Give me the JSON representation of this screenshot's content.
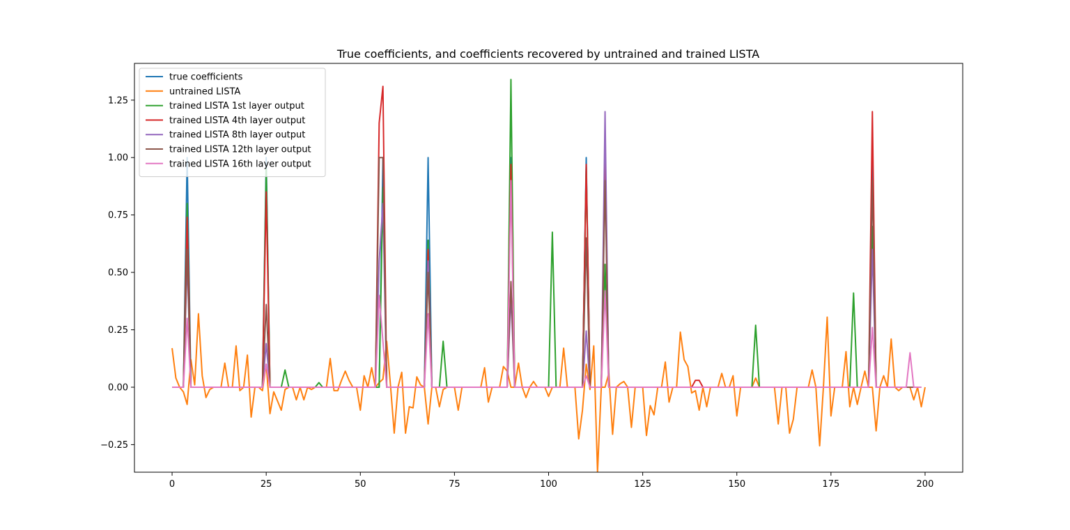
{
  "chart_data": {
    "type": "line",
    "title": "True coefficients, and coefficients recovered by untrained and trained LISTA",
    "xlabel": "",
    "ylabel": "",
    "xlim": [
      -10,
      210
    ],
    "ylim": [
      -0.37,
      1.41
    ],
    "xticks": [
      0,
      25,
      50,
      75,
      100,
      125,
      150,
      175,
      200
    ],
    "yticks": [
      -0.25,
      0.0,
      0.25,
      0.5,
      0.75,
      1.0,
      1.25
    ],
    "ytick_labels": [
      "−0.25",
      "0.00",
      "0.25",
      "0.50",
      "0.75",
      "1.00",
      "1.25"
    ],
    "legend_position": "top-left",
    "grid": false,
    "n_points": 200,
    "series": [
      {
        "name": "true coefficients",
        "color": "#1f77b4",
        "base": 0,
        "points": [
          [
            4,
            1.0
          ],
          [
            25,
            1.0
          ],
          [
            56,
            1.0
          ],
          [
            68,
            1.0
          ],
          [
            90,
            1.0
          ],
          [
            110,
            1.0
          ],
          [
            115,
            1.0
          ],
          [
            186,
            1.0
          ]
        ]
      },
      {
        "name": "untrained LISTA",
        "color": "#ff7f0e",
        "values": [
          0.17,
          0.04,
          0.0,
          -0.02,
          -0.075,
          0.12,
          0.01,
          0.32,
          0.05,
          -0.045,
          -0.01,
          0.0,
          0.0,
          0.0,
          0.105,
          0.0,
          0.0,
          0.18,
          -0.015,
          0.0,
          0.14,
          -0.13,
          0.0,
          0.0,
          -0.015,
          0.1,
          -0.115,
          -0.02,
          -0.06,
          -0.1,
          -0.01,
          0.0,
          0.0,
          -0.055,
          0.0,
          -0.055,
          0.0,
          -0.01,
          0.0,
          0.0,
          0.0,
          0.0,
          0.125,
          -0.015,
          -0.015,
          0.03,
          0.07,
          0.03,
          0.0,
          0.0,
          -0.1,
          0.05,
          0.0,
          0.085,
          0.0,
          0.02,
          0.035,
          0.2,
          0.01,
          -0.2,
          0.0,
          0.065,
          -0.2,
          -0.085,
          -0.09,
          0.045,
          0.01,
          0.0,
          -0.16,
          0.0,
          0.0,
          -0.085,
          -0.01,
          0.0,
          0.0,
          0.0,
          -0.1,
          0.0,
          0.0,
          0.0,
          0.0,
          0.0,
          0.0,
          0.085,
          -0.065,
          0.0,
          0.0,
          0.0,
          0.09,
          0.07,
          0.0,
          0.0,
          0.105,
          0.0,
          -0.045,
          0.0,
          0.025,
          0.0,
          0.0,
          0.0,
          -0.04,
          0.0,
          0.0,
          0.0,
          0.17,
          0.0,
          0.0,
          0.0,
          -0.225,
          -0.1,
          0.1,
          -0.01,
          0.18,
          -0.37,
          0.0,
          0.0,
          0.06,
          -0.205,
          0.0,
          0.015,
          0.025,
          0.0,
          -0.175,
          0.0,
          0.0,
          0.0,
          -0.21,
          -0.08,
          -0.12,
          0.0,
          0.0,
          0.11,
          -0.065,
          0.0,
          0.0,
          0.24,
          0.12,
          0.09,
          -0.025,
          -0.015,
          -0.1,
          0.0,
          -0.085,
          0.0,
          0.0,
          0.0,
          0.06,
          0.0,
          0.0,
          0.05,
          -0.125,
          0.0,
          0.0,
          0.0,
          0.0,
          0.04,
          0.0,
          0.0,
          0.0,
          0.0,
          0.0,
          -0.16,
          0.0,
          0.0,
          -0.2,
          -0.14,
          0.0,
          0.0,
          0.0,
          0.0,
          0.075,
          0.0,
          -0.255,
          0.0,
          0.305,
          -0.125,
          0.0,
          0.0,
          0.0,
          0.155,
          -0.085,
          0.0,
          -0.075,
          0.0,
          0.07,
          0.0,
          0.0,
          -0.19,
          0.0,
          0.05,
          0.0,
          0.21,
          0.0,
          -0.015,
          0.0,
          0.0,
          0.0,
          -0.055,
          0.0,
          -0.085,
          0.0
        ]
      },
      {
        "name": "trained LISTA 1st layer output",
        "color": "#2ca02c",
        "base": 0,
        "points": [
          [
            4,
            0.8
          ],
          [
            25,
            0.95
          ],
          [
            30,
            0.075
          ],
          [
            39,
            0.02
          ],
          [
            56,
            0.87
          ],
          [
            68,
            0.64
          ],
          [
            72,
            0.2
          ],
          [
            90,
            1.34
          ],
          [
            101,
            0.675
          ],
          [
            110,
            0.96
          ],
          [
            115,
            0.535
          ],
          [
            155,
            0.27
          ],
          [
            181,
            0.41
          ],
          [
            186,
            0.7
          ]
        ]
      },
      {
        "name": "trained LISTA 4th layer output",
        "color": "#d62728",
        "base": 0,
        "points": [
          [
            4,
            0.74
          ],
          [
            25,
            0.85
          ],
          [
            55,
            1.15
          ],
          [
            56,
            1.31
          ],
          [
            68,
            0.6
          ],
          [
            90,
            0.97
          ],
          [
            110,
            0.97
          ],
          [
            115,
            0.98
          ],
          [
            139,
            0.03
          ],
          [
            140,
            0.03
          ],
          [
            186,
            1.2
          ]
        ]
      },
      {
        "name": "trained LISTA 8th layer output",
        "color": "#9467bd",
        "base": 0,
        "points": [
          [
            4,
            0.55
          ],
          [
            25,
            0.19
          ],
          [
            55,
            0.55
          ],
          [
            56,
            0.8
          ],
          [
            68,
            0.55
          ],
          [
            90,
            0.4
          ],
          [
            110,
            0.245
          ],
          [
            115,
            1.2
          ],
          [
            186,
            0.6
          ]
        ]
      },
      {
        "name": "trained LISTA 12th layer output",
        "color": "#8c564b",
        "base": 0,
        "points": [
          [
            4,
            0.6
          ],
          [
            25,
            0.36
          ],
          [
            55,
            1.0
          ],
          [
            56,
            1.0
          ],
          [
            57,
            0.0
          ],
          [
            68,
            0.5
          ],
          [
            90,
            0.46
          ],
          [
            110,
            0.65
          ],
          [
            115,
            0.9
          ],
          [
            186,
            0.9
          ]
        ]
      },
      {
        "name": "trained LISTA 16th layer output",
        "color": "#e377c2",
        "base": 0,
        "points": [
          [
            4,
            0.3
          ],
          [
            25,
            0.1
          ],
          [
            55,
            0.4
          ],
          [
            56,
            0.2
          ],
          [
            68,
            0.32
          ],
          [
            90,
            0.9
          ],
          [
            110,
            0.05
          ],
          [
            115,
            0.42
          ],
          [
            186,
            0.26
          ],
          [
            196,
            0.15
          ]
        ]
      }
    ]
  }
}
